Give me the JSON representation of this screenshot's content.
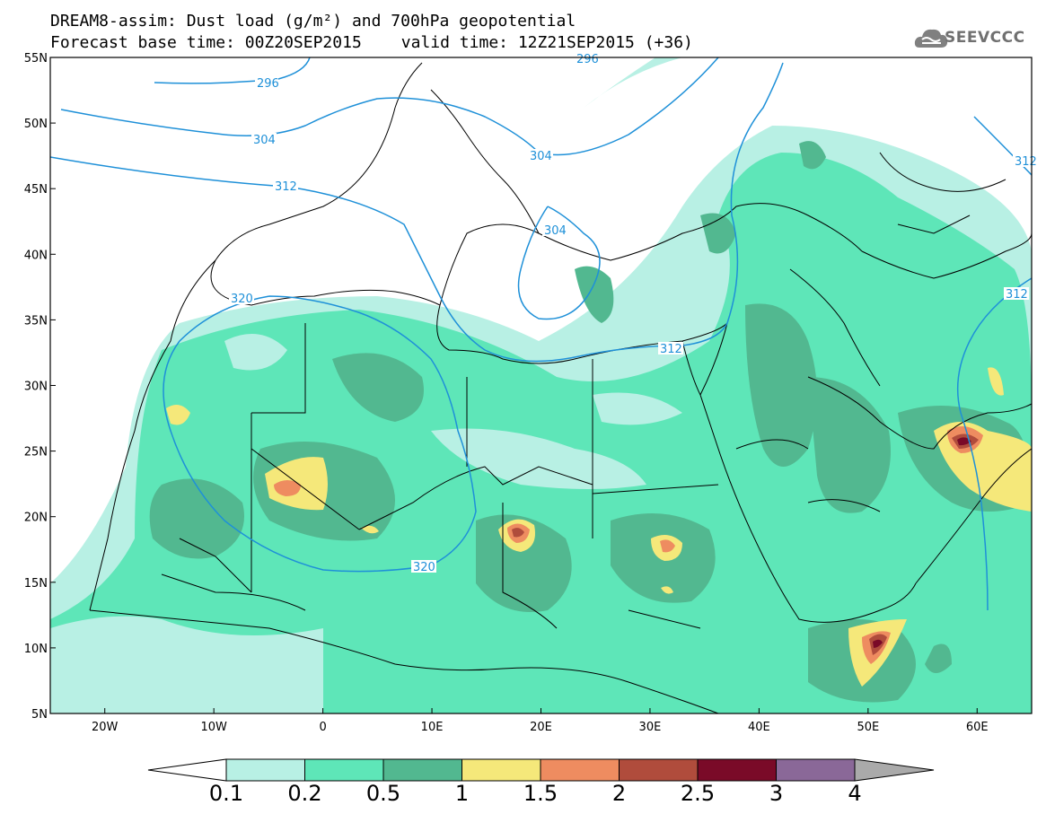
{
  "title": {
    "line1": "DREAM8-assim: Dust load (g/m²) and 700hPa geopotential",
    "line2_left": "Forecast base time: 00Z20SEP2015",
    "line2_right": "valid time: 12Z21SEP2015 (+36)"
  },
  "logo": {
    "text": "SEEVCCC",
    "icon": "cloud-logo-icon"
  },
  "map": {
    "lon_range": [
      -25,
      65
    ],
    "lat_range": [
      5,
      55
    ],
    "x_ticks": [
      "20W",
      "10W",
      "0",
      "10E",
      "20E",
      "30E",
      "40E",
      "50E",
      "60E"
    ],
    "y_ticks": [
      "55N",
      "50N",
      "45N",
      "40N",
      "35N",
      "30N",
      "25N",
      "20N",
      "15N",
      "10N",
      "5N"
    ],
    "contour_labels": [
      "296",
      "296",
      "304",
      "304",
      "304",
      "312",
      "312",
      "312",
      "312",
      "320",
      "320"
    ]
  },
  "colorbar": {
    "labels": [
      "0.1",
      "0.2",
      "0.5",
      "1",
      "1.5",
      "2",
      "2.5",
      "3",
      "4"
    ],
    "colors": [
      "#b8f0e4",
      "#5ee6b8",
      "#52b890",
      "#f5e87a",
      "#ee8c60",
      "#b04c3c",
      "#7a0a28",
      "#8a6898",
      "#aaaaaa"
    ]
  },
  "colors": {
    "dust_01": "#b8f0e4",
    "dust_02": "#5ee6b8",
    "dust_05": "#52b890",
    "dust_1": "#f5e87a",
    "dust_15": "#ee8c60",
    "dust_2": "#b04c3c",
    "dust_25": "#7a0a28",
    "contour": "#1e90d8"
  }
}
